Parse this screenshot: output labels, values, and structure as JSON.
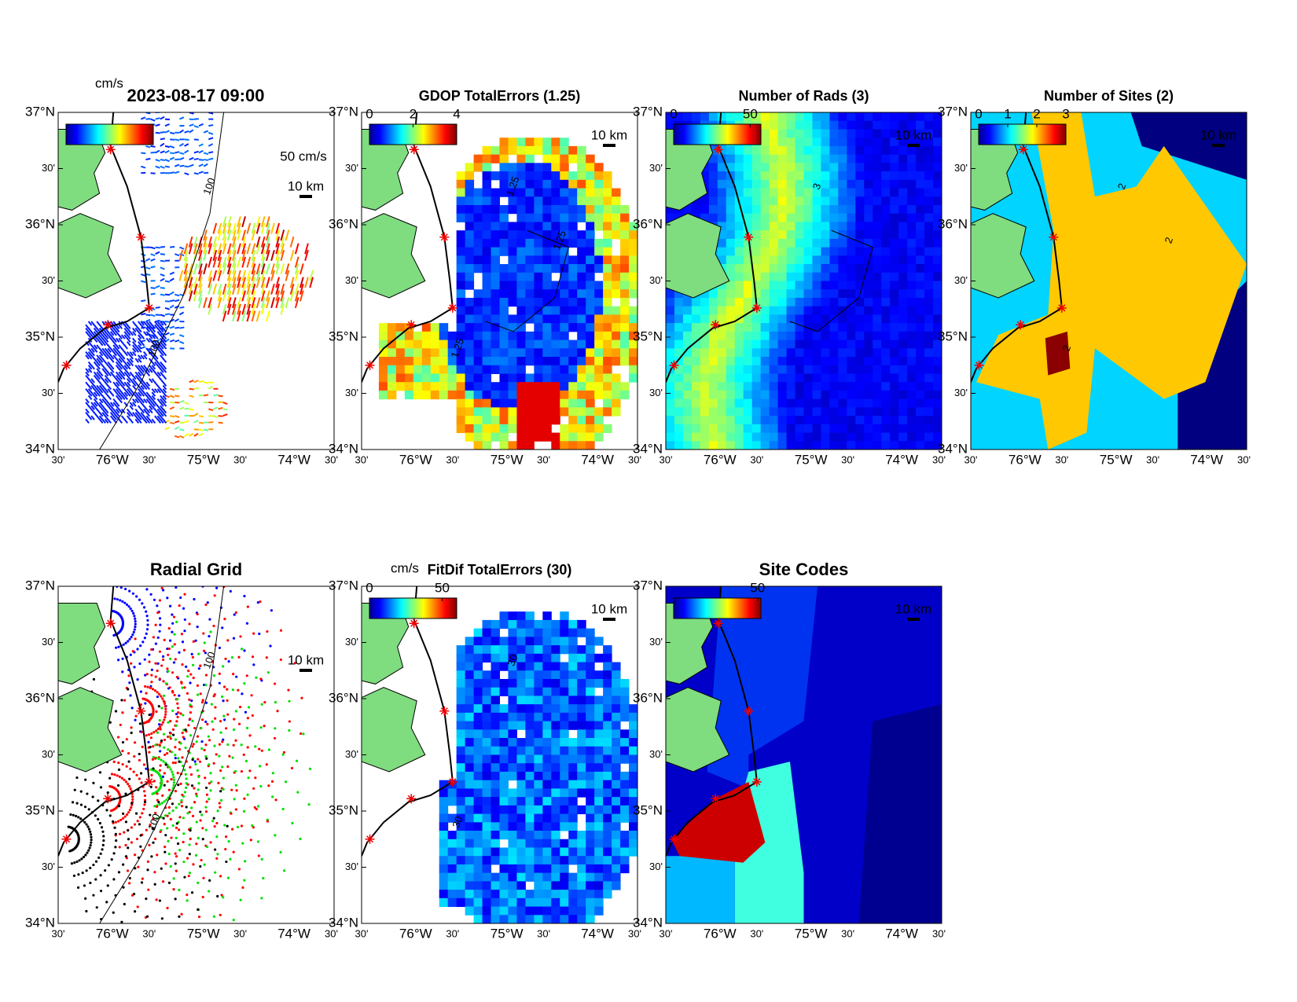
{
  "lat_ticks": [
    "37°N",
    "30'",
    "36°N",
    "30'",
    "35°N",
    "30'",
    "34°N"
  ],
  "lon_ticks": [
    "30'",
    "76°W",
    "30'",
    "75°W",
    "30'",
    "74°W",
    "30'"
  ],
  "scale_label": "10 km",
  "panels": [
    {
      "title": "2023-08-17 09:00",
      "colorbar_label": "cm/s",
      "reference_label": "50 cm/s",
      "contour_labels": [
        "100",
        "100"
      ]
    },
    {
      "title": "GDOP TotalErrors (1.25)",
      "colorbar_lim": [
        0,
        4
      ],
      "colorbar_ticks": [
        0,
        2,
        4
      ],
      "contour_labels": [
        "1.25",
        "1.25",
        "1.25"
      ]
    },
    {
      "title": "Number of Rads (3)",
      "colorbar_lim": [
        0,
        57
      ],
      "colorbar_ticks": [
        0,
        50
      ],
      "contour_labels": [
        "3"
      ]
    },
    {
      "title": "Number of Sites (2)",
      "colorbar_lim": [
        0,
        3
      ],
      "colorbar_ticks": [
        0,
        1,
        2,
        3
      ],
      "contour_labels": [
        "2",
        "2",
        "2"
      ]
    },
    {
      "title": "Radial Grid",
      "contour_labels": [
        "100",
        "100"
      ]
    },
    {
      "title": "FitDif TotalErrors (30)",
      "colorbar_label": "cm/s",
      "colorbar_lim": [
        0,
        60
      ],
      "colorbar_ticks": [
        0,
        50
      ],
      "contour_labels": [
        "30",
        "30"
      ]
    },
    {
      "title": "Site Codes",
      "colorbar_lim": [
        0,
        52
      ],
      "colorbar_ticks": [
        50
      ]
    }
  ]
}
